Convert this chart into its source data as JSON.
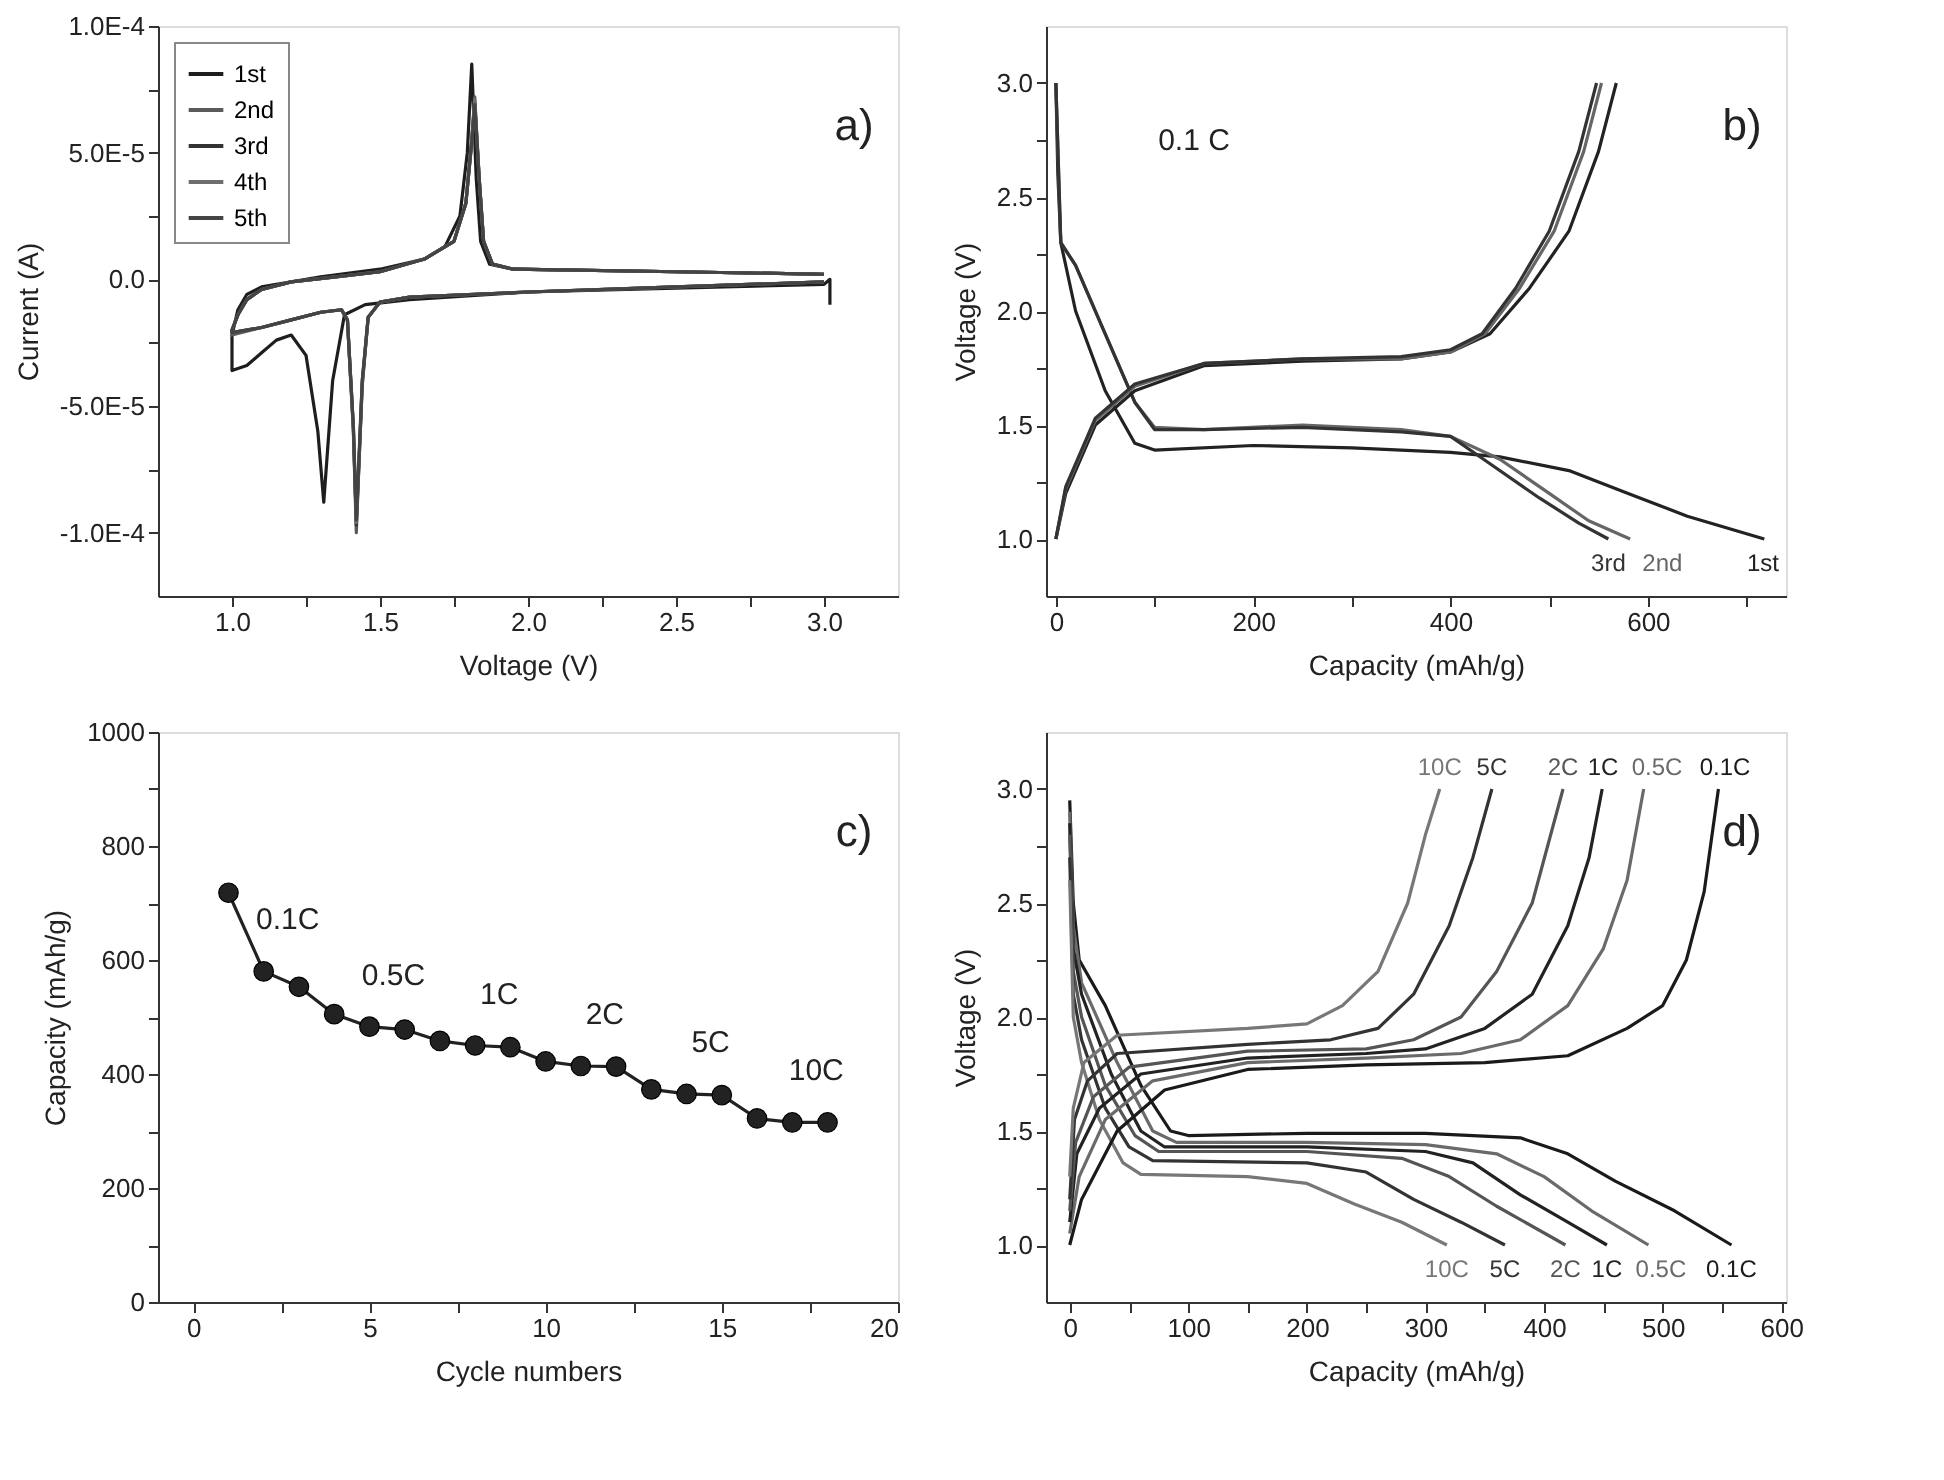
{
  "chart_data": [
    {
      "type": "line",
      "xlabel": "Voltage (V)",
      "ylabel": "Current (A)",
      "annotations": [
        "a)"
      ],
      "legend": "top left",
      "xlim": [
        0.75,
        3.25
      ],
      "ylim": [
        -0.000125,
        0.0001
      ],
      "xticks": [
        {
          "value": 1.0,
          "label": "1.0"
        },
        {
          "value": 1.25,
          "label": null
        },
        {
          "value": 1.5,
          "label": "1.5"
        },
        {
          "value": 1.75,
          "label": null
        },
        {
          "value": 2.0,
          "label": "2.0"
        },
        {
          "value": 2.25,
          "label": null
        },
        {
          "value": 2.5,
          "label": "2.5"
        },
        {
          "value": 2.75,
          "label": null
        },
        {
          "value": 3.0,
          "label": "3.0"
        }
      ],
      "yticks": [
        {
          "value": -0.0001,
          "label": "-1.0E-4"
        },
        {
          "value": -7.5e-05,
          "label": null
        },
        {
          "value": -5e-05,
          "label": "-5.0E-5"
        },
        {
          "value": -2.5e-05,
          "label": null
        },
        {
          "value": 0,
          "label": "0.0"
        },
        {
          "value": 2.5e-05,
          "label": null
        },
        {
          "value": 5e-05,
          "label": "5.0E-5"
        },
        {
          "value": 7.5e-05,
          "label": null
        },
        {
          "value": 0.0001,
          "label": "1.0E-4"
        }
      ],
      "x": [
        3.0,
        2.5,
        2.0,
        1.6,
        1.5,
        1.46,
        1.44,
        1.42,
        1.41,
        1.39,
        1.37,
        1.3,
        1.2,
        1.1,
        1.0,
        1.0,
        1.02,
        1.05,
        1.1,
        1.2,
        1.35,
        1.5,
        1.65,
        1.75,
        1.79,
        1.81,
        1.82,
        1.835,
        1.85,
        1.88,
        1.95,
        2.5,
        3.0
      ],
      "series": [
        {
          "name": "1st",
          "color": "#1e1e1e",
          "x": [
            3.02,
            3.02,
            3.0,
            2.5,
            2.0,
            1.6,
            1.45,
            1.38,
            1.34,
            1.31,
            1.29,
            1.25,
            1.2,
            1.15,
            1.1,
            1.05,
            1.0,
            1.0,
            1.02,
            1.05,
            1.1,
            1.2,
            1.3,
            1.5,
            1.65,
            1.72,
            1.77,
            1.795,
            1.81,
            1.825,
            1.84,
            1.87,
            1.95,
            2.5,
            3.0
          ],
          "values": [
            -1e-05,
            0,
            -2e-06,
            -3.5e-06,
            -5e-06,
            -8e-06,
            -1e-05,
            -1.4e-05,
            -4e-05,
            -8.8e-05,
            -6e-05,
            -3e-05,
            -2.2e-05,
            -2.4e-05,
            -2.9e-05,
            -3.4e-05,
            -3.6e-05,
            -2.2e-05,
            -1.2e-05,
            -6e-06,
            -3e-06,
            -1e-06,
            1e-06,
            4e-06,
            8e-06,
            1.3e-05,
            2.5e-05,
            5e-05,
            8.5e-05,
            4e-05,
            1.5e-05,
            6e-06,
            4e-06,
            3e-06,
            2e-06
          ]
        },
        {
          "name": "2nd",
          "color": "#5a5a5a",
          "values": [
            -1e-06,
            -3e-06,
            -5e-06,
            -7e-06,
            -9e-06,
            -1.5e-05,
            -4e-05,
            -0.0001,
            -6e-05,
            -1.6e-05,
            -1.2e-05,
            -1.3e-05,
            -1.6e-05,
            -1.9e-05,
            -2.2e-05,
            -2e-05,
            -1.4e-05,
            -8e-06,
            -4e-06,
            -1e-06,
            1e-06,
            3e-06,
            8e-06,
            1.5e-05,
            3e-05,
            5.5e-05,
            7.2e-05,
            4e-05,
            1.5e-05,
            6e-06,
            4e-06,
            3e-06,
            2e-06
          ]
        },
        {
          "name": "3rd",
          "color": "#333333",
          "values": [
            -1e-06,
            -3e-06,
            -5e-06,
            -7e-06,
            -9e-06,
            -1.5e-05,
            -4.2e-05,
            -9.7e-05,
            -5.8e-05,
            -1.6e-05,
            -1.2e-05,
            -1.3e-05,
            -1.6e-05,
            -1.9e-05,
            -2.1e-05,
            -2e-05,
            -1.4e-05,
            -8e-06,
            -4e-06,
            -1e-06,
            1e-06,
            3e-06,
            8e-06,
            1.5e-05,
            3e-05,
            5.5e-05,
            7e-05,
            4e-05,
            1.5e-05,
            6e-06,
            4e-06,
            3e-06,
            2e-06
          ]
        },
        {
          "name": "4th",
          "color": "#6e6e6e",
          "values": [
            -1e-06,
            -3e-06,
            -5e-06,
            -7e-06,
            -9e-06,
            -1.5e-05,
            -4.1e-05,
            -9.6e-05,
            -5.9e-05,
            -1.6e-05,
            -1.2e-05,
            -1.3e-05,
            -1.6e-05,
            -1.9e-05,
            -2.1e-05,
            -2e-05,
            -1.4e-05,
            -8e-06,
            -4e-06,
            -1e-06,
            1e-06,
            3e-06,
            8e-06,
            1.5e-05,
            3e-05,
            5.4e-05,
            7.1e-05,
            4e-05,
            1.5e-05,
            6e-06,
            4e-06,
            3e-06,
            2e-06
          ]
        },
        {
          "name": "5th",
          "color": "#444444",
          "values": [
            -1e-06,
            -3e-06,
            -5e-06,
            -7e-06,
            -9e-06,
            -1.5e-05,
            -4e-05,
            -9.5e-05,
            -5.8e-05,
            -1.6e-05,
            -1.2e-05,
            -1.3e-05,
            -1.6e-05,
            -1.9e-05,
            -2.1e-05,
            -2e-05,
            -1.4e-05,
            -8e-06,
            -4e-06,
            -1e-06,
            1e-06,
            3e-06,
            8e-06,
            1.5e-05,
            3e-05,
            5.4e-05,
            6.9e-05,
            4e-05,
            1.5e-05,
            6e-06,
            4e-06,
            3e-06,
            2e-06
          ]
        }
      ]
    },
    {
      "type": "line",
      "xlabel": "Capacity (mAh/g)",
      "ylabel": "Voltage (V)",
      "annotations": [
        "b)",
        "0.1 C"
      ],
      "xlim": [
        -10,
        740
      ],
      "ylim": [
        0.75,
        3.25
      ],
      "xticks": [
        0,
        {
          "value": 100,
          "label": null
        },
        200,
        {
          "value": 300,
          "label": null
        },
        400,
        {
          "value": 500,
          "label": null
        },
        600,
        {
          "value": 700,
          "label": null
        }
      ],
      "yticks": [
        {
          "value": 1.0,
          "label": "1.0"
        },
        {
          "value": 1.25,
          "label": null
        },
        {
          "value": 1.5,
          "label": "1.5"
        },
        {
          "value": 1.75,
          "label": null
        },
        {
          "value": 2.0,
          "label": "2.0"
        },
        {
          "value": 2.25,
          "label": null
        },
        {
          "value": 2.5,
          "label": "2.5"
        },
        {
          "value": 2.75,
          "label": null
        },
        {
          "value": 3.0,
          "label": "3.0"
        }
      ],
      "series": [
        {
          "name": "1st",
          "color": "#222222",
          "x": [
            0,
            2,
            5,
            20,
            50,
            80,
            100,
            200,
            300,
            400,
            450,
            520,
            580,
            640,
            718
          ],
          "values": [
            3.0,
            2.6,
            2.3,
            2.0,
            1.65,
            1.42,
            1.39,
            1.41,
            1.4,
            1.38,
            1.36,
            1.3,
            1.2,
            1.1,
            1.0
          ]
        },
        {
          "name": "2nd",
          "color": "#666666",
          "x": [
            0,
            5,
            20,
            50,
            80,
            100,
            150,
            250,
            350,
            400,
            450,
            500,
            540,
            582
          ],
          "values": [
            3.0,
            2.3,
            2.2,
            1.9,
            1.6,
            1.49,
            1.48,
            1.5,
            1.48,
            1.45,
            1.35,
            1.2,
            1.08,
            1.0
          ]
        },
        {
          "name": "3rd",
          "color": "#333333",
          "x": [
            0,
            5,
            20,
            50,
            80,
            100,
            150,
            250,
            350,
            400,
            440,
            490,
            530,
            560
          ],
          "values": [
            3.0,
            2.3,
            2.2,
            1.9,
            1.6,
            1.48,
            1.48,
            1.49,
            1.47,
            1.45,
            1.33,
            1.18,
            1.07,
            1.0
          ]
        },
        {
          "color": "#222222",
          "x": [
            0,
            10,
            40,
            80,
            150,
            250,
            350,
            400,
            440,
            480,
            520,
            550,
            568
          ],
          "values": [
            1.0,
            1.2,
            1.5,
            1.65,
            1.76,
            1.78,
            1.79,
            1.82,
            1.9,
            2.1,
            2.35,
            2.7,
            3.0
          ]
        },
        {
          "color": "#666666",
          "x": [
            0,
            10,
            40,
            80,
            150,
            250,
            350,
            400,
            435,
            470,
            505,
            535,
            553
          ],
          "values": [
            1.0,
            1.22,
            1.52,
            1.67,
            1.77,
            1.79,
            1.79,
            1.82,
            1.9,
            2.1,
            2.35,
            2.7,
            3.0
          ]
        },
        {
          "color": "#333333",
          "x": [
            0,
            10,
            40,
            80,
            150,
            250,
            350,
            400,
            432,
            466,
            500,
            530,
            548
          ],
          "values": [
            1.0,
            1.23,
            1.53,
            1.68,
            1.77,
            1.79,
            1.8,
            1.83,
            1.9,
            2.1,
            2.35,
            2.7,
            3.0
          ]
        }
      ]
    },
    {
      "type": "line",
      "marker": "circle",
      "xlabel": "Cycle numbers",
      "ylabel": "Capacity (mAh/g)",
      "color": "#222222",
      "annotations": [
        "c)",
        {
          "text": "0.1C",
          "x": 2,
          "y": 580
        },
        {
          "text": "0.5C",
          "x": 5,
          "y": 483
        },
        {
          "text": "1C",
          "x": 8,
          "y": 450
        },
        {
          "text": "2C",
          "x": 11,
          "y": 414
        },
        {
          "text": "5C",
          "x": 14,
          "y": 365
        },
        {
          "text": "10C",
          "x": 17,
          "y": 315
        }
      ],
      "xlim": [
        -1,
        20
      ],
      "ylim": [
        0,
        1000
      ],
      "xticks": [
        0,
        {
          "value": 2.5,
          "label": null
        },
        5,
        {
          "value": 7.5,
          "label": null
        },
        10,
        {
          "value": 12.5,
          "label": null
        },
        15,
        {
          "value": 17.5,
          "label": null
        },
        20
      ],
      "yticks": [
        0,
        {
          "value": 100,
          "label": null
        },
        200,
        {
          "value": 300,
          "label": null
        },
        400,
        {
          "value": 500,
          "label": null
        },
        600,
        {
          "value": 700,
          "label": null
        },
        800,
        {
          "value": 900,
          "label": null
        },
        1000
      ],
      "x": [
        1,
        2,
        3,
        4,
        5,
        6,
        7,
        8,
        9,
        10,
        11,
        12,
        13,
        14,
        15,
        16,
        17,
        18
      ],
      "values": [
        718,
        580,
        553,
        505,
        483,
        478,
        458,
        450,
        447,
        422,
        414,
        413,
        373,
        365,
        363,
        322,
        315,
        315
      ]
    },
    {
      "type": "line",
      "xlabel": "Capacity (mAh/g)",
      "ylabel": "Voltage (V)",
      "annotations": [
        "d)"
      ],
      "xlim": [
        -20,
        604
      ],
      "ylim": [
        0.75,
        3.25
      ],
      "xticks": [
        0,
        {
          "value": 50,
          "label": null
        },
        100,
        {
          "value": 150,
          "label": null
        },
        200,
        {
          "value": 250,
          "label": null
        },
        300,
        {
          "value": 350,
          "label": null
        },
        400,
        {
          "value": 450,
          "label": null
        },
        500,
        {
          "value": 550,
          "label": null
        },
        600
      ],
      "yticks": [
        {
          "value": 1.0,
          "label": "1.0"
        },
        {
          "value": 1.25,
          "label": null
        },
        {
          "value": 1.5,
          "label": "1.5"
        },
        {
          "value": 1.75,
          "label": null
        },
        {
          "value": 2.0,
          "label": "2.0"
        },
        {
          "value": 2.25,
          "label": null
        },
        {
          "value": 2.5,
          "label": "2.5"
        },
        {
          "value": 2.75,
          "label": null
        },
        {
          "value": 3.0,
          "label": "3.0"
        }
      ],
      "series": [
        {
          "name": "0.1C",
          "color": "#1a1a1a",
          "x": [
            0,
            3,
            8,
            30,
            60,
            85,
            100,
            200,
            300,
            380,
            420,
            460,
            510,
            558
          ],
          "values": [
            2.95,
            2.5,
            2.25,
            2.05,
            1.7,
            1.5,
            1.48,
            1.49,
            1.49,
            1.47,
            1.4,
            1.28,
            1.15,
            1.0
          ]
        },
        {
          "name": "0.5C",
          "color": "#6a6a6a",
          "x": [
            0,
            3,
            10,
            40,
            70,
            90,
            200,
            300,
            360,
            400,
            440,
            488
          ],
          "values": [
            2.9,
            2.4,
            2.15,
            1.8,
            1.5,
            1.45,
            1.45,
            1.44,
            1.4,
            1.3,
            1.15,
            1.0
          ]
        },
        {
          "name": "1C",
          "color": "#222222",
          "x": [
            0,
            3,
            10,
            35,
            60,
            80,
            200,
            300,
            340,
            380,
            420,
            453
          ],
          "values": [
            2.85,
            2.3,
            2.1,
            1.75,
            1.5,
            1.43,
            1.43,
            1.41,
            1.36,
            1.22,
            1.1,
            1.0
          ]
        },
        {
          "name": "2C",
          "color": "#555555",
          "x": [
            0,
            3,
            10,
            30,
            55,
            75,
            200,
            280,
            320,
            360,
            418
          ],
          "values": [
            2.8,
            2.2,
            2.0,
            1.7,
            1.48,
            1.41,
            1.41,
            1.38,
            1.3,
            1.17,
            1.0
          ]
        },
        {
          "name": "5C",
          "color": "#333333",
          "x": [
            0,
            3,
            10,
            30,
            50,
            70,
            200,
            250,
            290,
            330,
            367
          ],
          "values": [
            2.7,
            2.1,
            1.9,
            1.6,
            1.43,
            1.37,
            1.36,
            1.32,
            1.2,
            1.1,
            1.0
          ]
        },
        {
          "name": "10C",
          "color": "#777777",
          "x": [
            0,
            3,
            10,
            25,
            45,
            60,
            150,
            200,
            240,
            280,
            318
          ],
          "values": [
            2.6,
            2.0,
            1.8,
            1.55,
            1.36,
            1.31,
            1.3,
            1.27,
            1.18,
            1.1,
            1.0
          ]
        },
        {
          "name": "0.1C",
          "color": "#1a1a1a",
          "x": [
            0,
            10,
            40,
            80,
            150,
            250,
            350,
            420,
            470,
            500,
            520,
            535,
            547
          ],
          "values": [
            1.0,
            1.2,
            1.5,
            1.68,
            1.77,
            1.79,
            1.8,
            1.83,
            1.95,
            2.05,
            2.25,
            2.55,
            3.0
          ]
        },
        {
          "name": "0.5C",
          "color": "#6a6a6a",
          "x": [
            0,
            8,
            30,
            70,
            150,
            250,
            330,
            380,
            420,
            450,
            470,
            484
          ],
          "values": [
            1.05,
            1.3,
            1.55,
            1.72,
            1.8,
            1.82,
            1.84,
            1.9,
            2.05,
            2.3,
            2.6,
            3.0
          ]
        },
        {
          "name": "1C",
          "color": "#222222",
          "x": [
            0,
            6,
            25,
            60,
            150,
            250,
            300,
            350,
            390,
            420,
            438,
            449
          ],
          "values": [
            1.1,
            1.4,
            1.6,
            1.75,
            1.82,
            1.84,
            1.86,
            1.95,
            2.1,
            2.4,
            2.7,
            3.0
          ]
        },
        {
          "name": "2C",
          "color": "#555555",
          "x": [
            0,
            5,
            20,
            50,
            150,
            250,
            290,
            330,
            360,
            390,
            416
          ],
          "values": [
            1.15,
            1.45,
            1.65,
            1.78,
            1.85,
            1.86,
            1.9,
            2.0,
            2.2,
            2.5,
            3.0
          ]
        },
        {
          "name": "5C",
          "color": "#333333",
          "x": [
            0,
            4,
            15,
            40,
            150,
            220,
            260,
            290,
            320,
            340,
            356
          ],
          "values": [
            1.2,
            1.55,
            1.72,
            1.84,
            1.88,
            1.9,
            1.95,
            2.1,
            2.4,
            2.7,
            3.0
          ]
        },
        {
          "name": "10C",
          "color": "#777777",
          "x": [
            0,
            3,
            12,
            40,
            150,
            200,
            230,
            260,
            285,
            300,
            312
          ],
          "values": [
            1.3,
            1.6,
            1.8,
            1.92,
            1.95,
            1.97,
            2.05,
            2.2,
            2.5,
            2.8,
            3.0
          ]
        }
      ]
    }
  ]
}
